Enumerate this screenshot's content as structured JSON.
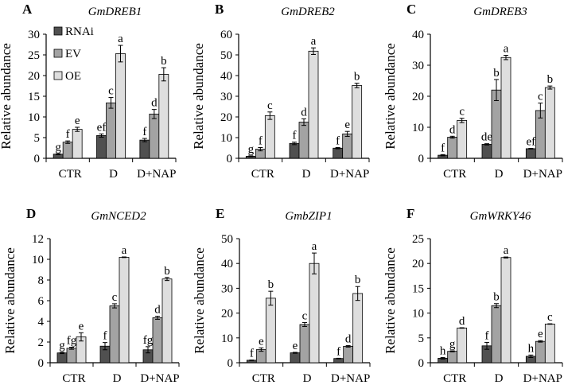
{
  "chart_data": [
    {
      "type": "bar",
      "panel": "A",
      "title": "GmDREB1",
      "ylabel": "Relative abundance",
      "xlabel": "",
      "ylim": [
        0,
        30
      ],
      "yticks": [
        0,
        5,
        10,
        15,
        20,
        25,
        30
      ],
      "categories": [
        "CTR",
        "D",
        "D+NAP"
      ],
      "legend": {
        "placement": "top-left",
        "entries": [
          "RNAi",
          "EV",
          "OE"
        ]
      },
      "series": [
        {
          "name": "RNAi",
          "values": [
            1.0,
            5.5,
            4.4
          ],
          "errors": [
            0.1,
            0.4,
            0.4
          ],
          "letters": [
            "g",
            "ef",
            "f"
          ]
        },
        {
          "name": "EV",
          "values": [
            3.9,
            13.4,
            10.7
          ],
          "errors": [
            0.3,
            1.3,
            1.1
          ],
          "letters": [
            "f",
            "c",
            "d"
          ]
        },
        {
          "name": "OE",
          "values": [
            7.0,
            25.3,
            20.3
          ],
          "errors": [
            0.5,
            2.0,
            1.6
          ],
          "letters": [
            "e",
            "a",
            "b"
          ]
        }
      ]
    },
    {
      "type": "bar",
      "panel": "B",
      "title": "GmDREB2",
      "ylabel": "Relative abundance",
      "xlabel": "",
      "ylim": [
        0,
        60
      ],
      "yticks": [
        0,
        10,
        20,
        30,
        40,
        50,
        60
      ],
      "categories": [
        "CTR",
        "D",
        "D+NAP"
      ],
      "series": [
        {
          "name": "RNAi",
          "values": [
            1.0,
            7.2,
            4.9
          ],
          "errors": [
            0.2,
            0.6,
            0.3
          ],
          "letters": [
            "g",
            "f",
            "f"
          ]
        },
        {
          "name": "EV",
          "values": [
            4.4,
            17.5,
            11.8
          ],
          "errors": [
            0.8,
            1.6,
            1.2
          ],
          "letters": [
            "f",
            "d",
            "e"
          ]
        },
        {
          "name": "OE",
          "values": [
            20.6,
            51.8,
            35.2
          ],
          "errors": [
            1.8,
            1.6,
            1.1
          ],
          "letters": [
            "c",
            "a",
            "b"
          ]
        }
      ]
    },
    {
      "type": "bar",
      "panel": "C",
      "title": "GmDREB3",
      "ylabel": "Relative abundance",
      "xlabel": "",
      "ylim": [
        0,
        40
      ],
      "yticks": [
        0,
        10,
        20,
        30,
        40
      ],
      "categories": [
        "CTR",
        "D",
        "D+NAP"
      ],
      "series": [
        {
          "name": "RNAi",
          "values": [
            1.0,
            4.5,
            3.1
          ],
          "errors": [
            0.2,
            0.2,
            0.1
          ],
          "letters": [
            "f",
            "de",
            "ef"
          ]
        },
        {
          "name": "EV",
          "values": [
            6.8,
            22.0,
            15.4
          ],
          "errors": [
            0.3,
            3.4,
            2.4
          ],
          "letters": [
            "d",
            "b",
            "c"
          ]
        },
        {
          "name": "OE",
          "values": [
            12.2,
            32.5,
            22.8
          ],
          "errors": [
            0.7,
            0.7,
            0.5
          ],
          "letters": [
            "c",
            "a",
            "b"
          ]
        }
      ]
    },
    {
      "type": "bar",
      "panel": "D",
      "title": "GmNCED2",
      "ylabel": "Relative abundance",
      "xlabel": "",
      "ylim": [
        0,
        12
      ],
      "yticks": [
        0,
        2,
        4,
        6,
        8,
        10,
        12
      ],
      "categories": [
        "CTR",
        "D",
        "D+NAP"
      ],
      "series": [
        {
          "name": "RNAi",
          "values": [
            0.95,
            1.6,
            1.25
          ],
          "errors": [
            0.07,
            0.35,
            0.3
          ],
          "letters": [
            "g",
            "f",
            "fg"
          ]
        },
        {
          "name": "EV",
          "values": [
            1.4,
            5.5,
            4.35
          ],
          "errors": [
            0.1,
            0.2,
            0.15
          ],
          "letters": [
            "fg",
            "c",
            "d"
          ]
        },
        {
          "name": "OE",
          "values": [
            2.5,
            10.2,
            8.1
          ],
          "errors": [
            0.4,
            0.03,
            0.15
          ],
          "letters": [
            "e",
            "a",
            "b"
          ]
        }
      ]
    },
    {
      "type": "bar",
      "panel": "E",
      "title": "GmbZIP1",
      "ylabel": "Relative abundance",
      "xlabel": "",
      "ylim": [
        0,
        50
      ],
      "yticks": [
        0,
        10,
        20,
        30,
        40,
        50
      ],
      "categories": [
        "CTR",
        "D",
        "D+NAP"
      ],
      "series": [
        {
          "name": "RNAi",
          "values": [
            1.0,
            4.0,
            1.7
          ],
          "errors": [
            0.1,
            0.2,
            0.1
          ],
          "letters": [
            "f",
            "e",
            "f"
          ]
        },
        {
          "name": "EV",
          "values": [
            5.3,
            15.4,
            6.6
          ],
          "errors": [
            0.7,
            0.8,
            0.3
          ],
          "letters": [
            "e",
            "c",
            "d"
          ]
        },
        {
          "name": "OE",
          "values": [
            26.0,
            40.0,
            27.9
          ],
          "errors": [
            2.8,
            4.2,
            2.8
          ],
          "letters": [
            "b",
            "a",
            "b"
          ]
        }
      ]
    },
    {
      "type": "bar",
      "panel": "F",
      "title": "GmWRKY46",
      "ylabel": "Relative abundance",
      "xlabel": "",
      "ylim": [
        0,
        25
      ],
      "yticks": [
        0,
        5,
        10,
        15,
        20,
        25
      ],
      "categories": [
        "CTR",
        "D",
        "D+NAP"
      ],
      "series": [
        {
          "name": "RNAi",
          "values": [
            0.9,
            3.4,
            1.3
          ],
          "errors": [
            0.15,
            0.7,
            0.25
          ],
          "letters": [
            "h",
            "f",
            "h"
          ]
        },
        {
          "name": "EV",
          "values": [
            2.3,
            11.5,
            4.3
          ],
          "errors": [
            0.1,
            0.4,
            0.15
          ],
          "letters": [
            "g",
            "b",
            "e"
          ]
        },
        {
          "name": "OE",
          "values": [
            7.0,
            21.2,
            7.8
          ],
          "errors": [
            0.05,
            0.1,
            0.05
          ],
          "letters": [
            "d",
            "a",
            "c"
          ]
        }
      ]
    }
  ],
  "colors": {
    "RNAi": "#505050",
    "EV": "#a3a3a3",
    "OE": "#dedede",
    "outline": "#000000"
  }
}
